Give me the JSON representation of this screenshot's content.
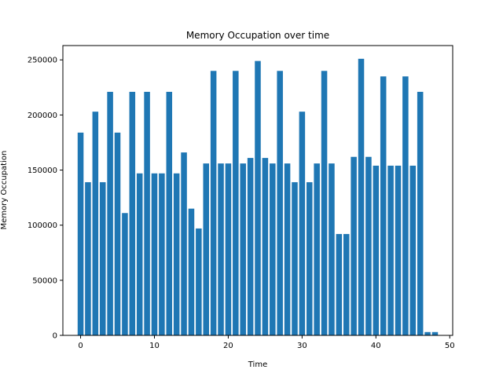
{
  "chart_data": {
    "type": "bar",
    "title": "Memory Occupation over time",
    "xlabel": "Time",
    "ylabel": "Memory Occupation",
    "x": [
      0,
      1,
      2,
      3,
      4,
      5,
      6,
      7,
      8,
      9,
      10,
      11,
      12,
      13,
      14,
      15,
      16,
      17,
      18,
      19,
      20,
      21,
      22,
      23,
      24,
      25,
      26,
      27,
      28,
      29,
      30,
      31,
      32,
      33,
      34,
      35,
      36,
      37,
      38,
      39,
      40,
      41,
      42,
      43,
      44,
      45,
      46,
      47,
      48
    ],
    "values": [
      184000,
      139000,
      203000,
      139000,
      221000,
      184000,
      111000,
      221000,
      147000,
      221000,
      147000,
      147000,
      221000,
      147000,
      166000,
      115000,
      97000,
      156000,
      240000,
      156000,
      156000,
      240000,
      156000,
      161000,
      249000,
      161000,
      156000,
      240000,
      156000,
      139000,
      203000,
      139000,
      156000,
      240000,
      156000,
      92000,
      92000,
      162000,
      251000,
      162000,
      154000,
      235000,
      154000,
      154000,
      235000,
      154000,
      221000,
      3000,
      3000
    ],
    "xlim": [
      -2.4,
      50.4
    ],
    "ylim": [
      0,
      263000
    ],
    "xticks": [
      0,
      10,
      20,
      30,
      40,
      50
    ],
    "xtick_labels": [
      "0",
      "10",
      "20",
      "30",
      "40",
      "50"
    ],
    "yticks": [
      0,
      50000,
      100000,
      150000,
      200000,
      250000
    ],
    "ytick_labels": [
      "0",
      "50000",
      "100000",
      "150000",
      "200000",
      "250000"
    ],
    "bar_color": "#1f77b4",
    "grid": false,
    "legend": "none"
  }
}
